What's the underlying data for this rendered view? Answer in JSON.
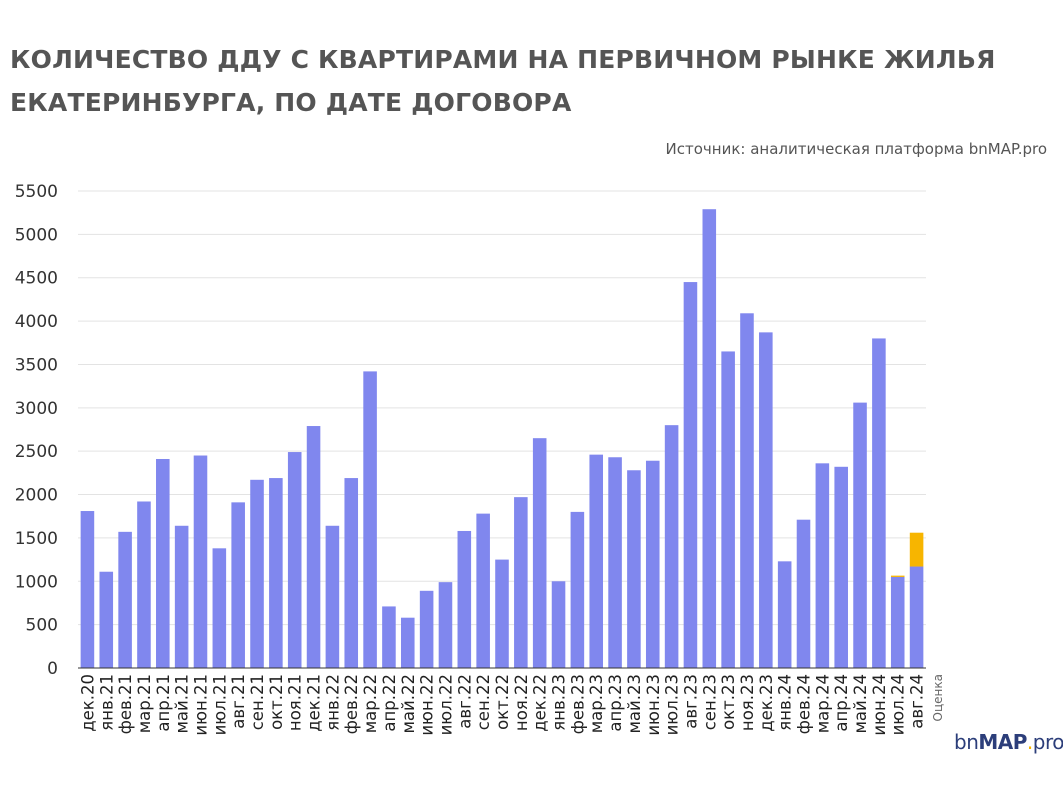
{
  "title_line1": "КОЛИЧЕСТВО ДДУ С КВАРТИРАМИ НА ПЕРВИЧНОМ РЫНКЕ ЖИЛЬЯ",
  "title_line2": "ЕКАТЕРИНБУРГА, ПО ДАТЕ ДОГОВОРА",
  "source": "Источник: аналитическая платформа bnMAP.pro",
  "logo": {
    "pre": "bn",
    "bold": "MAP",
    "dot": ".",
    "post": "pro"
  },
  "colors": {
    "bar": "#8087ee",
    "estimate": "#f7b500",
    "grid": "#e3e3e3",
    "axis": "#333333"
  },
  "chart_data": {
    "type": "bar",
    "stacked": true,
    "categories": [
      "дек.20",
      "янв.21",
      "фев.21",
      "мар.21",
      "апр.21",
      "май.21",
      "июн.21",
      "июл.21",
      "авг.21",
      "сен.21",
      "окт.21",
      "ноя.21",
      "дек.21",
      "янв.22",
      "фев.22",
      "мар.22",
      "апр.22",
      "май.22",
      "июн.22",
      "июл.22",
      "авг.22",
      "сен.22",
      "окт.22",
      "ноя.22",
      "дек.22",
      "янв.23",
      "фев.23",
      "мар.23",
      "апр.23",
      "май.23",
      "июн.23",
      "июл.23",
      "авг.23",
      "сен.23",
      "окт.23",
      "ноя.23",
      "дек.23",
      "янв.24",
      "фев.24",
      "мар.24",
      "апр.24",
      "май.24",
      "июн.24",
      "июл.24",
      "авг.24"
    ],
    "series": [
      {
        "values": [
          1810,
          1110,
          1570,
          1920,
          2410,
          1640,
          2450,
          1380,
          1910,
          2170,
          2190,
          2490,
          2790,
          1640,
          2190,
          3420,
          710,
          580,
          890,
          990,
          1580,
          1780,
          1250,
          1970,
          2650,
          1000,
          1800,
          2460,
          2430,
          2280,
          2390,
          2800,
          4450,
          5290,
          3650,
          4090,
          3870,
          1230,
          1710,
          2360,
          2320,
          3060,
          3800,
          1050,
          1170
        ]
      },
      {
        "values": [
          0,
          0,
          0,
          0,
          0,
          0,
          0,
          0,
          0,
          0,
          0,
          0,
          0,
          0,
          0,
          0,
          0,
          0,
          0,
          0,
          0,
          0,
          0,
          0,
          0,
          0,
          0,
          0,
          0,
          0,
          0,
          0,
          0,
          0,
          0,
          0,
          0,
          0,
          0,
          0,
          0,
          0,
          0,
          15,
          390
        ]
      }
    ],
    "yticks": [
      0,
      500,
      1000,
      1500,
      2000,
      2500,
      3000,
      3500,
      4000,
      4500,
      5000,
      5500
    ],
    "ylim": [
      0,
      5500
    ],
    "grid": true,
    "annotation": "Оценка"
  }
}
